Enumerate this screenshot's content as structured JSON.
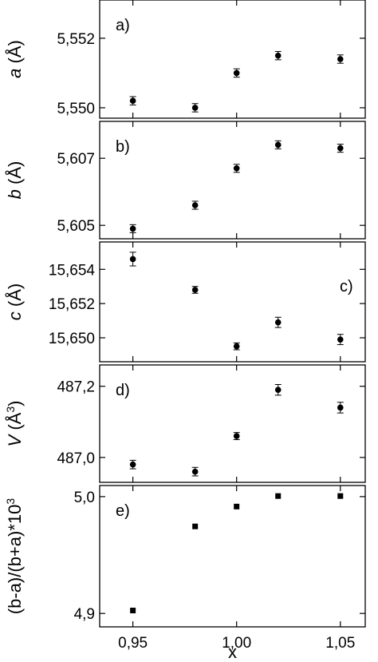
{
  "chart_data": [
    {
      "type": "scatter",
      "panel_label": "a)",
      "ylabel_var": "a",
      "ylabel_unit": " (Å)",
      "ylabel_sup": "",
      "yticks": [
        5.55,
        5.552
      ],
      "tick_labels": [
        "5,550",
        "5,552"
      ],
      "ylim": [
        5.5497,
        5.5531
      ],
      "x": [
        0.95,
        0.98,
        1.0,
        1.02,
        1.05
      ],
      "y": [
        5.5502,
        5.55,
        5.551,
        5.5515,
        5.5514
      ],
      "err": [
        0.00012,
        0.00012,
        0.00012,
        0.00012,
        0.00012
      ],
      "marker": "circle",
      "label_pos": "top-left"
    },
    {
      "type": "scatter",
      "panel_label": "b)",
      "ylabel_var": "b",
      "ylabel_unit": " (Å)",
      "ylabel_sup": "",
      "yticks": [
        5.605,
        5.607
      ],
      "tick_labels": [
        "5,605",
        "5,607"
      ],
      "ylim": [
        5.6046,
        5.6081
      ],
      "x": [
        0.95,
        0.98,
        1.0,
        1.02,
        1.05
      ],
      "y": [
        5.6049,
        5.6056,
        5.6067,
        5.6074,
        5.6073
      ],
      "err": [
        0.00012,
        0.00012,
        0.00012,
        0.00012,
        0.00012
      ],
      "marker": "circle",
      "label_pos": "top-left"
    },
    {
      "type": "scatter",
      "panel_label": "c)",
      "ylabel_var": "c",
      "ylabel_unit": " (Å)",
      "ylabel_sup": "",
      "yticks": [
        15.65,
        15.652,
        15.654
      ],
      "tick_labels": [
        "15,650",
        "15,652",
        "15,654"
      ],
      "ylim": [
        15.6486,
        15.6556
      ],
      "x": [
        0.95,
        0.98,
        1.0,
        1.02,
        1.05
      ],
      "y": [
        15.6546,
        15.6528,
        15.6495,
        15.6509,
        15.6499
      ],
      "err": [
        0.0004,
        0.0002,
        0.0002,
        0.0003,
        0.0003
      ],
      "marker": "circle",
      "label_pos": "top-right"
    },
    {
      "type": "scatter",
      "panel_label": "d)",
      "ylabel_var": "V",
      "ylabel_unit": " (Å",
      "ylabel_sup": "3",
      "yticks": [
        487.0,
        487.2
      ],
      "tick_labels": [
        "487,0",
        "487,2"
      ],
      "ylim": [
        486.93,
        487.26
      ],
      "x": [
        0.95,
        0.98,
        1.0,
        1.02,
        1.05
      ],
      "y": [
        486.98,
        486.96,
        487.06,
        487.19,
        487.14
      ],
      "err": [
        0.012,
        0.012,
        0.01,
        0.015,
        0.015
      ],
      "marker": "circle",
      "label_pos": "top-left"
    },
    {
      "type": "scatter",
      "panel_label": "e)",
      "ylabel_var": "(b-a)/(b+a)*10",
      "ylabel_unit": "",
      "ylabel_sup": "3",
      "yticks": [
        4.9,
        5.0
      ],
      "tick_labels": [
        "4,9",
        "5,0"
      ],
      "ylim": [
        4.8885,
        5.0095
      ],
      "x": [
        0.95,
        0.98,
        1.0,
        1.02,
        1.05
      ],
      "y": [
        4.9025,
        4.9745,
        4.9915,
        5.0005,
        5.0005
      ],
      "err": [
        0,
        0,
        0,
        0,
        0
      ],
      "marker": "square",
      "label_pos": "top-left"
    }
  ],
  "x_axis": {
    "label": "x",
    "ticks": [
      0.95,
      1.0,
      1.05
    ],
    "tick_labels": [
      "0,95",
      "1,00",
      "1,05"
    ],
    "xlim": [
      0.934,
      1.062
    ]
  }
}
